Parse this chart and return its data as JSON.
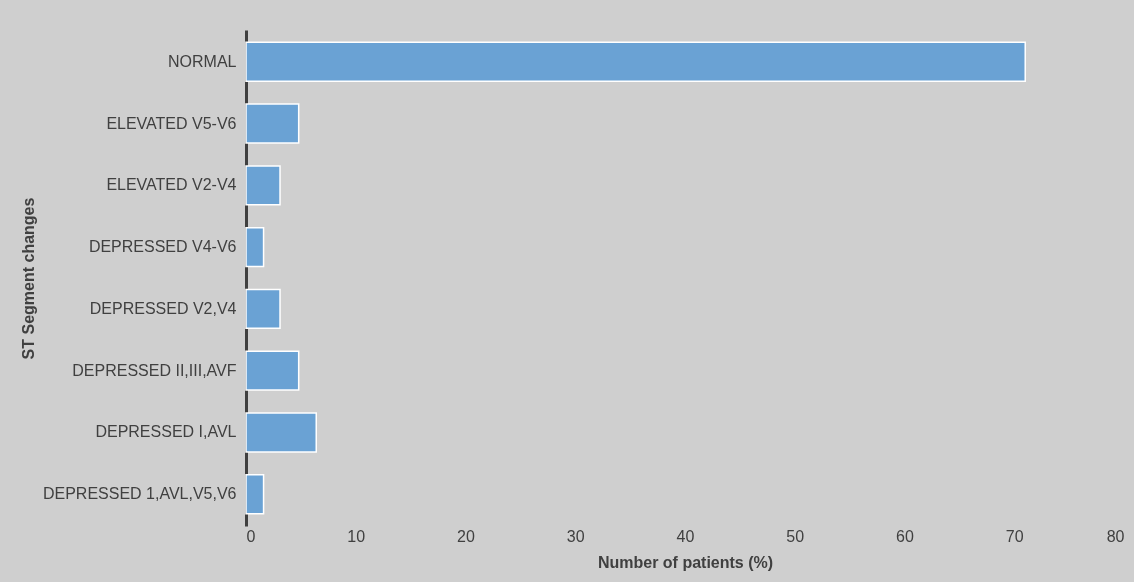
{
  "chart_data": {
    "type": "bar",
    "orientation": "horizontal",
    "xlabel": "Number of patients (%)",
    "ylabel": "ST Segment changes",
    "categories": [
      "NORMAL",
      "ELEVATED V5-V6",
      "ELEVATED V2-V4",
      "DEPRESSED V4-V6",
      "DEPRESSED V2,V4",
      "DEPRESSED II,III,AVF",
      "DEPRESSED I,AVL",
      "DEPRESSED 1,AVL,V5,V6"
    ],
    "values": [
      71,
      4.8,
      3.1,
      1.6,
      3.1,
      4.8,
      6.4,
      1.6
    ],
    "color": "#6aa2d4",
    "xlim": [
      0,
      80
    ],
    "xticks": [
      0,
      10,
      20,
      30,
      40,
      50,
      60,
      70,
      80
    ],
    "grid": false
  }
}
